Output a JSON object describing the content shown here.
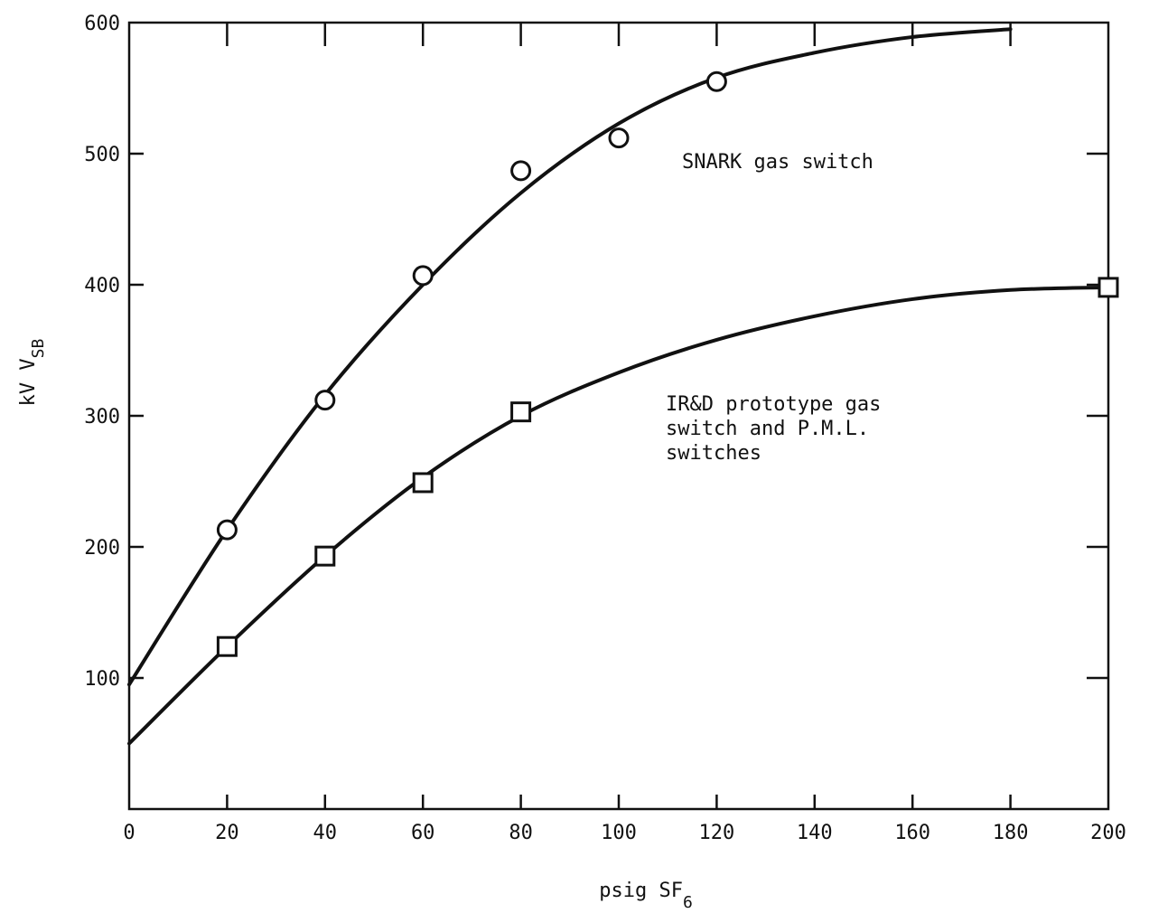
{
  "chart_data": {
    "type": "line",
    "xlabel": "psig SF",
    "xlabel_subscript": "6",
    "ylabel": "kV V",
    "ylabel_subscript": "SB",
    "xlim": [
      0,
      200
    ],
    "ylim": [
      0,
      600
    ],
    "x_ticks": [
      0,
      20,
      40,
      60,
      80,
      100,
      120,
      140,
      160,
      180,
      200
    ],
    "y_ticks": [
      100,
      200,
      300,
      400,
      500,
      600
    ],
    "grid": false,
    "series": [
      {
        "name": "SNARK gas switch",
        "marker": "circle",
        "points": [
          {
            "x": 20,
            "y": 213
          },
          {
            "x": 40,
            "y": 312
          },
          {
            "x": 60,
            "y": 407
          },
          {
            "x": 80,
            "y": 487
          },
          {
            "x": 100,
            "y": 512
          },
          {
            "x": 120,
            "y": 555
          }
        ],
        "curve": [
          {
            "x": 0,
            "y": 95
          },
          {
            "x": 20,
            "y": 213
          },
          {
            "x": 40,
            "y": 316
          },
          {
            "x": 60,
            "y": 400
          },
          {
            "x": 80,
            "y": 470
          },
          {
            "x": 100,
            "y": 523
          },
          {
            "x": 120,
            "y": 558
          },
          {
            "x": 140,
            "y": 577
          },
          {
            "x": 160,
            "y": 589
          },
          {
            "x": 180,
            "y": 595
          }
        ]
      },
      {
        "name": "IR&D prototype gas switch and P.M.L. switches",
        "marker": "square",
        "points": [
          {
            "x": 20,
            "y": 124
          },
          {
            "x": 40,
            "y": 193
          },
          {
            "x": 60,
            "y": 249
          },
          {
            "x": 80,
            "y": 303
          },
          {
            "x": 200,
            "y": 398
          }
        ],
        "curve": [
          {
            "x": 0,
            "y": 50
          },
          {
            "x": 20,
            "y": 124
          },
          {
            "x": 40,
            "y": 193
          },
          {
            "x": 60,
            "y": 253
          },
          {
            "x": 80,
            "y": 300
          },
          {
            "x": 100,
            "y": 333
          },
          {
            "x": 120,
            "y": 358
          },
          {
            "x": 140,
            "y": 376
          },
          {
            "x": 160,
            "y": 389
          },
          {
            "x": 180,
            "y": 396
          },
          {
            "x": 200,
            "y": 398
          }
        ]
      }
    ],
    "annotations": [
      {
        "lines": [
          "SNARK gas switch"
        ]
      },
      {
        "lines": [
          "IR&D prototype gas",
          "switch and P.M.L.",
          "switches"
        ]
      }
    ]
  }
}
